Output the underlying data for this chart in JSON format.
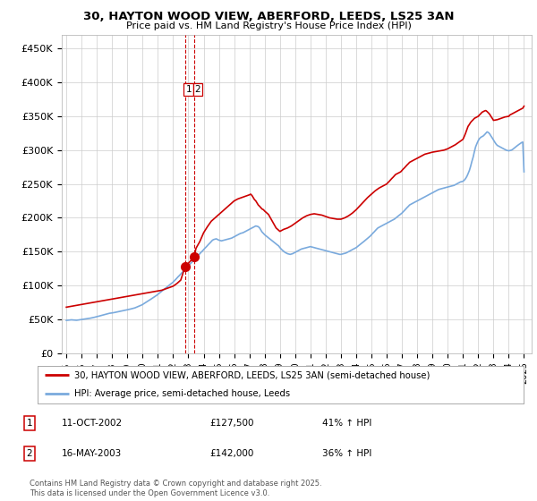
{
  "title": "30, HAYTON WOOD VIEW, ABERFORD, LEEDS, LS25 3AN",
  "subtitle": "Price paid vs. HM Land Registry's House Price Index (HPI)",
  "red_label": "30, HAYTON WOOD VIEW, ABERFORD, LEEDS, LS25 3AN (semi-detached house)",
  "blue_label": "HPI: Average price, semi-detached house, Leeds",
  "transactions": [
    {
      "num": 1,
      "date": "11-OCT-2002",
      "price": 127500,
      "hpi_pct": "41%",
      "direction": "↑"
    },
    {
      "num": 2,
      "date": "16-MAY-2003",
      "price": 142000,
      "hpi_pct": "36%",
      "direction": "↑"
    }
  ],
  "transaction_dates_year": [
    2002.78,
    2003.37
  ],
  "footnote": "Contains HM Land Registry data © Crown copyright and database right 2025.\nThis data is licensed under the Open Government Licence v3.0.",
  "ylim": [
    0,
    470000
  ],
  "yticks": [
    0,
    50000,
    100000,
    150000,
    200000,
    250000,
    300000,
    350000,
    400000,
    450000
  ],
  "ytick_labels": [
    "£0",
    "£50K",
    "£100K",
    "£150K",
    "£200K",
    "£250K",
    "£300K",
    "£350K",
    "£400K",
    "£450K"
  ],
  "red_color": "#cc0000",
  "blue_color": "#7aaadd",
  "background_color": "#ffffff",
  "grid_color": "#cccccc",
  "hpi_x": [
    1995.0,
    1995.08,
    1995.17,
    1995.25,
    1995.33,
    1995.42,
    1995.5,
    1995.58,
    1995.67,
    1995.75,
    1995.83,
    1995.92,
    1996.0,
    1996.08,
    1996.17,
    1996.25,
    1996.33,
    1996.42,
    1996.5,
    1996.58,
    1996.67,
    1996.75,
    1996.83,
    1996.92,
    1997.0,
    1997.08,
    1997.17,
    1997.25,
    1997.33,
    1997.42,
    1997.5,
    1997.58,
    1997.67,
    1997.75,
    1997.83,
    1997.92,
    1998.0,
    1998.08,
    1998.17,
    1998.25,
    1998.33,
    1998.42,
    1998.5,
    1998.58,
    1998.67,
    1998.75,
    1998.83,
    1998.92,
    1999.0,
    1999.08,
    1999.17,
    1999.25,
    1999.33,
    1999.42,
    1999.5,
    1999.58,
    1999.67,
    1999.75,
    1999.83,
    1999.92,
    2000.0,
    2000.08,
    2000.17,
    2000.25,
    2000.33,
    2000.42,
    2000.5,
    2000.58,
    2000.67,
    2000.75,
    2000.83,
    2000.92,
    2001.0,
    2001.08,
    2001.17,
    2001.25,
    2001.33,
    2001.42,
    2001.5,
    2001.58,
    2001.67,
    2001.75,
    2001.83,
    2001.92,
    2002.0,
    2002.08,
    2002.17,
    2002.25,
    2002.33,
    2002.42,
    2002.5,
    2002.58,
    2002.67,
    2002.75,
    2002.83,
    2002.92,
    2003.0,
    2003.08,
    2003.17,
    2003.25,
    2003.33,
    2003.42,
    2003.5,
    2003.58,
    2003.67,
    2003.75,
    2003.83,
    2003.92,
    2004.0,
    2004.08,
    2004.17,
    2004.25,
    2004.33,
    2004.42,
    2004.5,
    2004.58,
    2004.67,
    2004.75,
    2004.83,
    2004.92,
    2005.0,
    2005.08,
    2005.17,
    2005.25,
    2005.33,
    2005.42,
    2005.5,
    2005.58,
    2005.67,
    2005.75,
    2005.83,
    2005.92,
    2006.0,
    2006.08,
    2006.17,
    2006.25,
    2006.33,
    2006.42,
    2006.5,
    2006.58,
    2006.67,
    2006.75,
    2006.83,
    2006.92,
    2007.0,
    2007.08,
    2007.17,
    2007.25,
    2007.33,
    2007.42,
    2007.5,
    2007.58,
    2007.67,
    2007.75,
    2007.83,
    2007.92,
    2008.0,
    2008.08,
    2008.17,
    2008.25,
    2008.33,
    2008.42,
    2008.5,
    2008.58,
    2008.67,
    2008.75,
    2008.83,
    2008.92,
    2009.0,
    2009.08,
    2009.17,
    2009.25,
    2009.33,
    2009.42,
    2009.5,
    2009.58,
    2009.67,
    2009.75,
    2009.83,
    2009.92,
    2010.0,
    2010.08,
    2010.17,
    2010.25,
    2010.33,
    2010.42,
    2010.5,
    2010.58,
    2010.67,
    2010.75,
    2010.83,
    2010.92,
    2011.0,
    2011.08,
    2011.17,
    2011.25,
    2011.33,
    2011.42,
    2011.5,
    2011.58,
    2011.67,
    2011.75,
    2011.83,
    2011.92,
    2012.0,
    2012.08,
    2012.17,
    2012.25,
    2012.33,
    2012.42,
    2012.5,
    2012.58,
    2012.67,
    2012.75,
    2012.83,
    2012.92,
    2013.0,
    2013.08,
    2013.17,
    2013.25,
    2013.33,
    2013.42,
    2013.5,
    2013.58,
    2013.67,
    2013.75,
    2013.83,
    2013.92,
    2014.0,
    2014.08,
    2014.17,
    2014.25,
    2014.33,
    2014.42,
    2014.5,
    2014.58,
    2014.67,
    2014.75,
    2014.83,
    2014.92,
    2015.0,
    2015.08,
    2015.17,
    2015.25,
    2015.33,
    2015.42,
    2015.5,
    2015.58,
    2015.67,
    2015.75,
    2015.83,
    2015.92,
    2016.0,
    2016.08,
    2016.17,
    2016.25,
    2016.33,
    2016.42,
    2016.5,
    2016.58,
    2016.67,
    2016.75,
    2016.83,
    2016.92,
    2017.0,
    2017.08,
    2017.17,
    2017.25,
    2017.33,
    2017.42,
    2017.5,
    2017.58,
    2017.67,
    2017.75,
    2017.83,
    2017.92,
    2018.0,
    2018.08,
    2018.17,
    2018.25,
    2018.33,
    2018.42,
    2018.5,
    2018.58,
    2018.67,
    2018.75,
    2018.83,
    2018.92,
    2019.0,
    2019.08,
    2019.17,
    2019.25,
    2019.33,
    2019.42,
    2019.5,
    2019.58,
    2019.67,
    2019.75,
    2019.83,
    2019.92,
    2020.0,
    2020.08,
    2020.17,
    2020.25,
    2020.33,
    2020.42,
    2020.5,
    2020.58,
    2020.67,
    2020.75,
    2020.83,
    2020.92,
    2021.0,
    2021.08,
    2021.17,
    2021.25,
    2021.33,
    2021.42,
    2021.5,
    2021.58,
    2021.67,
    2021.75,
    2021.83,
    2021.92,
    2022.0,
    2022.08,
    2022.17,
    2022.25,
    2022.33,
    2022.42,
    2022.5,
    2022.58,
    2022.67,
    2022.75,
    2022.83,
    2022.92,
    2023.0,
    2023.08,
    2023.17,
    2023.25,
    2023.33,
    2023.42,
    2023.5,
    2023.58,
    2023.67,
    2023.75,
    2023.83,
    2023.92,
    2024.0,
    2024.08,
    2024.17,
    2024.25,
    2024.33,
    2024.42,
    2024.5,
    2024.58,
    2024.67,
    2024.75,
    2024.83,
    2024.92,
    2025.0
  ],
  "hpi_y": [
    48500,
    48700,
    48900,
    49100,
    49300,
    49200,
    49000,
    48800,
    48700,
    48900,
    49200,
    49500,
    49800,
    50000,
    50300,
    50600,
    51000,
    51200,
    51500,
    51800,
    52200,
    52600,
    53000,
    53500,
    54000,
    54500,
    55000,
    55500,
    56000,
    56500,
    57000,
    57500,
    58000,
    58500,
    59000,
    59200,
    59500,
    59800,
    60200,
    60600,
    61000,
    61400,
    61800,
    62200,
    62600,
    63000,
    63400,
    63800,
    64200,
    64600,
    65000,
    65500,
    66000,
    66500,
    67000,
    67800,
    68600,
    69400,
    70200,
    71000,
    72000,
    73200,
    74400,
    75600,
    76800,
    78000,
    79200,
    80400,
    81600,
    82800,
    84000,
    85500,
    87000,
    88500,
    90000,
    91500,
    93000,
    94500,
    96000,
    97500,
    99000,
    100500,
    102000,
    103500,
    105000,
    107000,
    109000,
    111000,
    113000,
    115000,
    117000,
    119000,
    121000,
    123000,
    125000,
    127000,
    129000,
    131000,
    133000,
    135000,
    137000,
    139000,
    141000,
    143000,
    145000,
    147000,
    149000,
    151000,
    153000,
    155000,
    157000,
    159000,
    161000,
    163000,
    165000,
    167000,
    168000,
    168500,
    169000,
    168000,
    167000,
    166500,
    166000,
    166500,
    167000,
    167500,
    168000,
    168500,
    169000,
    169500,
    170000,
    171000,
    172000,
    173000,
    174000,
    175000,
    176000,
    177000,
    177500,
    178000,
    179000,
    180000,
    181000,
    182000,
    183000,
    184000,
    185000,
    186000,
    187000,
    188000,
    187500,
    187000,
    185000,
    182000,
    179000,
    177000,
    175000,
    173500,
    172000,
    170500,
    169000,
    167500,
    166000,
    164500,
    163000,
    161500,
    160000,
    158500,
    156000,
    154000,
    152000,
    150500,
    149000,
    148000,
    147000,
    146500,
    146000,
    146500,
    147000,
    148000,
    149000,
    150000,
    151000,
    152000,
    153000,
    154000,
    154500,
    155000,
    155500,
    156000,
    156500,
    157000,
    157500,
    157000,
    156500,
    156000,
    155500,
    155000,
    154500,
    154000,
    153500,
    153000,
    152500,
    152000,
    151500,
    151000,
    150500,
    150000,
    149500,
    149000,
    148500,
    148000,
    147500,
    147000,
    146500,
    146000,
    146000,
    146500,
    147000,
    147500,
    148000,
    149000,
    150000,
    151000,
    152000,
    153000,
    154000,
    155000,
    156000,
    157500,
    159000,
    160500,
    162000,
    163500,
    165000,
    166500,
    168000,
    169500,
    171000,
    173000,
    175000,
    177000,
    179000,
    181000,
    183000,
    185000,
    186000,
    187000,
    188000,
    189000,
    190000,
    191000,
    192000,
    193000,
    194000,
    195000,
    196000,
    197000,
    198000,
    199500,
    201000,
    202500,
    204000,
    205500,
    207000,
    209000,
    211000,
    213000,
    215000,
    217000,
    219000,
    220000,
    221000,
    222000,
    223000,
    224000,
    225000,
    226000,
    227000,
    228000,
    229000,
    230000,
    231000,
    232000,
    233000,
    234000,
    235000,
    236000,
    237000,
    238000,
    239000,
    240000,
    241000,
    242000,
    242500,
    243000,
    243500,
    244000,
    244500,
    245000,
    245500,
    246000,
    246500,
    247000,
    247500,
    248000,
    249000,
    250000,
    251000,
    252000,
    253000,
    253500,
    254000,
    255500,
    258000,
    261000,
    265000,
    270000,
    276000,
    283000,
    290000,
    298000,
    305000,
    310000,
    314000,
    317000,
    319000,
    320000,
    321000,
    323000,
    325000,
    327000,
    326000,
    324000,
    321000,
    318000,
    315000,
    312000,
    309000,
    307000,
    306000,
    305000,
    304000,
    303000,
    302000,
    301000,
    300000,
    299500,
    299000,
    299500,
    300000,
    301000,
    302500,
    304000,
    305500,
    307000,
    308500,
    310000,
    311000,
    312000,
    268000
  ],
  "red_x": [
    1995.0,
    1995.25,
    1995.5,
    1995.75,
    1996.0,
    1996.25,
    1996.5,
    1996.75,
    1997.0,
    1997.25,
    1997.5,
    1997.75,
    1998.0,
    1998.25,
    1998.5,
    1998.75,
    1999.0,
    1999.25,
    1999.5,
    1999.75,
    2000.0,
    2000.25,
    2000.5,
    2000.75,
    2001.0,
    2001.25,
    2001.5,
    2001.75,
    2002.0,
    2002.25,
    2002.5,
    2002.78,
    2003.37,
    2003.5,
    2003.75,
    2004.0,
    2004.25,
    2004.5,
    2004.75,
    2005.0,
    2005.25,
    2005.5,
    2005.75,
    2006.0,
    2006.25,
    2006.5,
    2006.75,
    2007.0,
    2007.08,
    2007.17,
    2007.25,
    2007.33,
    2007.42,
    2007.5,
    2007.58,
    2007.67,
    2007.75,
    2007.83,
    2007.92,
    2008.0,
    2008.25,
    2008.5,
    2008.75,
    2009.0,
    2009.25,
    2009.5,
    2009.75,
    2010.0,
    2010.25,
    2010.5,
    2010.75,
    2011.0,
    2011.25,
    2011.5,
    2011.75,
    2012.0,
    2012.25,
    2012.5,
    2012.75,
    2013.0,
    2013.25,
    2013.5,
    2013.75,
    2014.0,
    2014.25,
    2014.5,
    2014.75,
    2015.0,
    2015.25,
    2015.5,
    2015.75,
    2016.0,
    2016.08,
    2016.17,
    2016.25,
    2016.33,
    2016.42,
    2016.5,
    2016.58,
    2016.67,
    2016.75,
    2016.83,
    2016.92,
    2017.0,
    2017.08,
    2017.17,
    2017.25,
    2017.33,
    2017.42,
    2017.5,
    2017.58,
    2017.67,
    2017.75,
    2017.83,
    2017.92,
    2018.0,
    2018.08,
    2018.17,
    2018.25,
    2018.33,
    2018.42,
    2018.5,
    2018.58,
    2018.67,
    2018.75,
    2018.83,
    2018.92,
    2019.0,
    2019.25,
    2019.5,
    2019.75,
    2020.0,
    2020.25,
    2020.5,
    2020.75,
    2021.0,
    2021.08,
    2021.17,
    2021.25,
    2021.33,
    2021.42,
    2021.5,
    2021.58,
    2021.67,
    2021.75,
    2021.83,
    2021.92,
    2022.0,
    2022.08,
    2022.17,
    2022.25,
    2022.33,
    2022.42,
    2022.5,
    2022.58,
    2022.67,
    2022.75,
    2022.83,
    2022.92,
    2023.0,
    2023.25,
    2023.5,
    2023.75,
    2024.0,
    2024.08,
    2024.17,
    2024.25,
    2024.33,
    2024.42,
    2024.5,
    2024.58,
    2024.67,
    2024.75,
    2024.83,
    2024.92,
    2025.0
  ],
  "red_y": [
    68000,
    69000,
    70000,
    71000,
    72000,
    73000,
    74000,
    75000,
    76000,
    77000,
    78000,
    79000,
    80000,
    81000,
    82000,
    83000,
    84000,
    85000,
    86000,
    87000,
    88000,
    89000,
    90000,
    91000,
    92000,
    93000,
    95000,
    97000,
    99000,
    103000,
    108000,
    127500,
    142000,
    155000,
    165000,
    178000,
    187000,
    195000,
    200000,
    205000,
    210000,
    215000,
    220000,
    225000,
    228000,
    230000,
    232000,
    234000,
    235000,
    233000,
    230000,
    227000,
    225000,
    222000,
    219000,
    217000,
    215000,
    213000,
    212000,
    210000,
    205000,
    195000,
    185000,
    180000,
    183000,
    185000,
    188000,
    192000,
    196000,
    200000,
    203000,
    205000,
    206000,
    205000,
    204000,
    202000,
    200000,
    199000,
    198000,
    198000,
    200000,
    203000,
    207000,
    212000,
    218000,
    224000,
    230000,
    235000,
    240000,
    244000,
    247000,
    250000,
    252000,
    254000,
    256000,
    258000,
    260000,
    262000,
    264000,
    265000,
    266000,
    267000,
    268000,
    270000,
    272000,
    274000,
    276000,
    278000,
    280000,
    282000,
    283000,
    284000,
    285000,
    286000,
    287000,
    288000,
    289000,
    290000,
    291000,
    292000,
    293000,
    294000,
    294500,
    295000,
    295500,
    296000,
    296500,
    297000,
    298000,
    299000,
    300000,
    302000,
    305000,
    308000,
    312000,
    316000,
    320000,
    325000,
    330000,
    335000,
    338000,
    341000,
    343000,
    345000,
    347000,
    348000,
    349000,
    350000,
    352000,
    354000,
    356000,
    357000,
    358000,
    358500,
    357000,
    355000,
    353000,
    350000,
    347000,
    344000,
    345000,
    347000,
    349000,
    350000,
    352000,
    353000,
    354000,
    355000,
    356000,
    357000,
    358000,
    359000,
    360000,
    361000,
    362000,
    365000
  ]
}
